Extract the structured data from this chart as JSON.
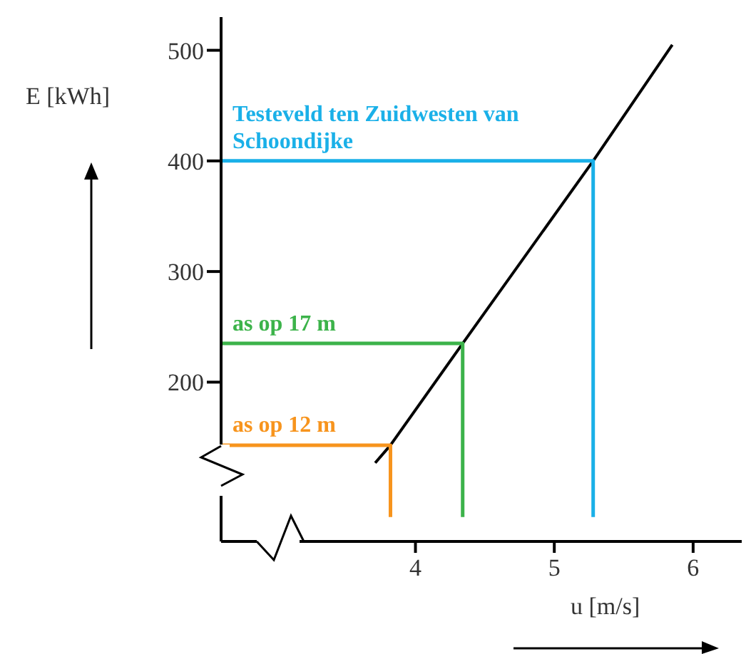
{
  "chart_data": {
    "type": "line",
    "xlabel": "u [m/s]",
    "ylabel": "E [kWh]",
    "xlim": [
      2.6,
      6.35
    ],
    "ylim": [
      56,
      530
    ],
    "xticks": [
      4,
      5,
      6
    ],
    "yticks": [
      200,
      300,
      400,
      500
    ],
    "marker": "none",
    "series": [
      {
        "color": "#000000",
        "x": [
          3.71,
          3.82,
          4.34,
          5.28,
          5.85
        ],
        "values": [
          127,
          143,
          235,
          400,
          505
        ]
      },
      {
        "color": "#1ab0e8",
        "x": [
          2.6,
          5.28,
          5.28
        ],
        "values": [
          400,
          400,
          78
        ]
      },
      {
        "color": "#3cb34a",
        "x": [
          2.6,
          4.34,
          4.34
        ],
        "values": [
          235,
          235,
          78
        ]
      },
      {
        "color": "#f7941d",
        "x": [
          2.6,
          3.82,
          3.82
        ],
        "values": [
          143,
          143,
          78
        ]
      }
    ],
    "annotations": [
      "Testeveld ten Zuidwesten van Schoondijke",
      "as op 17 m",
      "as op 12 m"
    ]
  }
}
